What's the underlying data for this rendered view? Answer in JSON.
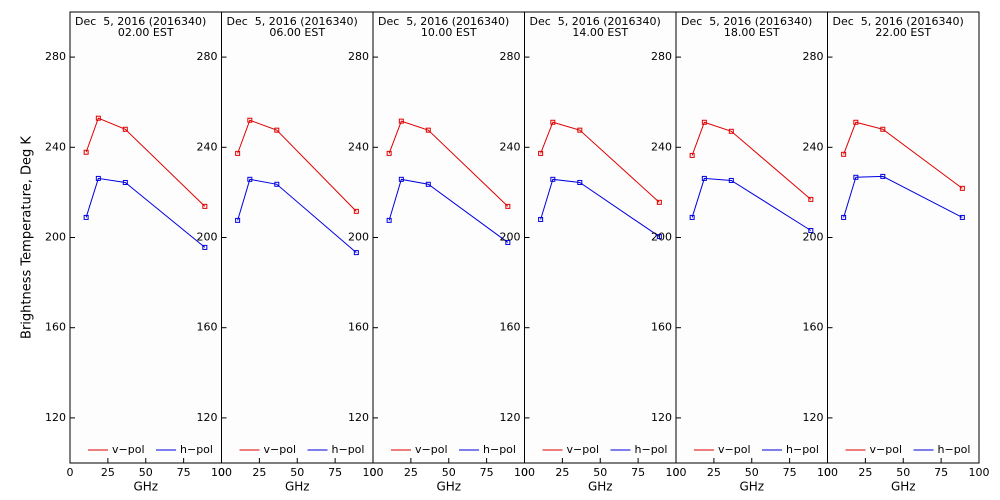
{
  "chart_data": [
    {
      "type": "line",
      "title": "Dec  5, 2016 (2016340)",
      "subtitle": "02.00 EST",
      "xlabel": "GHz",
      "ylabel": "Brightness Temperature, Deg K",
      "x": [
        10.65,
        18.7,
        36.5,
        89
      ],
      "xlim": [
        0,
        100
      ],
      "xticks": [
        0,
        25,
        50,
        75,
        100
      ],
      "ylim": [
        100,
        300
      ],
      "yticks": [
        120,
        160,
        200,
        240,
        280
      ],
      "series": [
        {
          "name": "v−pol",
          "color": "#e00000",
          "values": [
            237.8,
            252.9,
            248,
            213.8
          ]
        },
        {
          "name": "h−pol",
          "color": "#0000e0",
          "values": [
            208.9,
            226.2,
            224.4,
            195.6
          ]
        }
      ]
    },
    {
      "type": "line",
      "title": "Dec  5, 2016 (2016340)",
      "subtitle": "06.00 EST",
      "xlabel": "GHz",
      "x": [
        10.65,
        18.7,
        36.5,
        89
      ],
      "xlim": [
        0,
        100
      ],
      "xticks": [
        0,
        25,
        50,
        75,
        100
      ],
      "ylim": [
        100,
        300
      ],
      "yticks": [
        120,
        160,
        200,
        240,
        280
      ],
      "series": [
        {
          "name": "v−pol",
          "color": "#e00000",
          "values": [
            237.3,
            252,
            247.6,
            211.6
          ]
        },
        {
          "name": "h−pol",
          "color": "#0000e0",
          "values": [
            207.6,
            225.8,
            223.6,
            193.3
          ]
        }
      ]
    },
    {
      "type": "line",
      "title": "Dec  5, 2016 (2016340)",
      "subtitle": "10.00 EST",
      "xlabel": "GHz",
      "x": [
        10.65,
        18.7,
        36.5,
        89
      ],
      "xlim": [
        0,
        100
      ],
      "xticks": [
        0,
        25,
        50,
        75,
        100
      ],
      "ylim": [
        100,
        300
      ],
      "yticks": [
        120,
        160,
        200,
        240,
        280
      ],
      "series": [
        {
          "name": "v−pol",
          "color": "#e00000",
          "values": [
            237.3,
            251.6,
            247.6,
            213.8
          ]
        },
        {
          "name": "h−pol",
          "color": "#0000e0",
          "values": [
            207.6,
            225.8,
            223.6,
            197.8
          ]
        }
      ]
    },
    {
      "type": "line",
      "title": "Dec  5, 2016 (2016340)",
      "subtitle": "14.00 EST",
      "xlabel": "GHz",
      "x": [
        10.65,
        18.7,
        36.5,
        89
      ],
      "xlim": [
        0,
        100
      ],
      "xticks": [
        0,
        25,
        50,
        75,
        100
      ],
      "ylim": [
        100,
        300
      ],
      "yticks": [
        120,
        160,
        200,
        240,
        280
      ],
      "series": [
        {
          "name": "v−pol",
          "color": "#e00000",
          "values": [
            237.3,
            251.1,
            247.6,
            215.6
          ]
        },
        {
          "name": "h−pol",
          "color": "#0000e0",
          "values": [
            208,
            225.8,
            224.4,
            200.4
          ]
        }
      ]
    },
    {
      "type": "line",
      "title": "Dec  5, 2016 (2016340)",
      "subtitle": "18.00 EST",
      "xlabel": "GHz",
      "x": [
        10.65,
        18.7,
        36.5,
        89
      ],
      "xlim": [
        0,
        100
      ],
      "xticks": [
        0,
        25,
        50,
        75,
        100
      ],
      "ylim": [
        100,
        300
      ],
      "yticks": [
        120,
        160,
        200,
        240,
        280
      ],
      "series": [
        {
          "name": "v−pol",
          "color": "#e00000",
          "values": [
            236.4,
            251.1,
            247.1,
            216.9
          ]
        },
        {
          "name": "h−pol",
          "color": "#0000e0",
          "values": [
            208.9,
            226.2,
            225.3,
            203.1
          ]
        }
      ]
    },
    {
      "type": "line",
      "title": "Dec  5, 2016 (2016340)",
      "subtitle": "22.00 EST",
      "xlabel": "GHz",
      "x": [
        10.65,
        18.7,
        36.5,
        89
      ],
      "xlim": [
        0,
        100
      ],
      "xticks": [
        0,
        25,
        50,
        75,
        100
      ],
      "ylim": [
        100,
        300
      ],
      "yticks": [
        120,
        160,
        200,
        240,
        280
      ],
      "series": [
        {
          "name": "v−pol",
          "color": "#e00000",
          "values": [
            236.9,
            251.1,
            248,
            221.8
          ]
        },
        {
          "name": "h−pol",
          "color": "#0000e0",
          "values": [
            208.9,
            226.7,
            227.1,
            208.9
          ]
        }
      ]
    }
  ]
}
